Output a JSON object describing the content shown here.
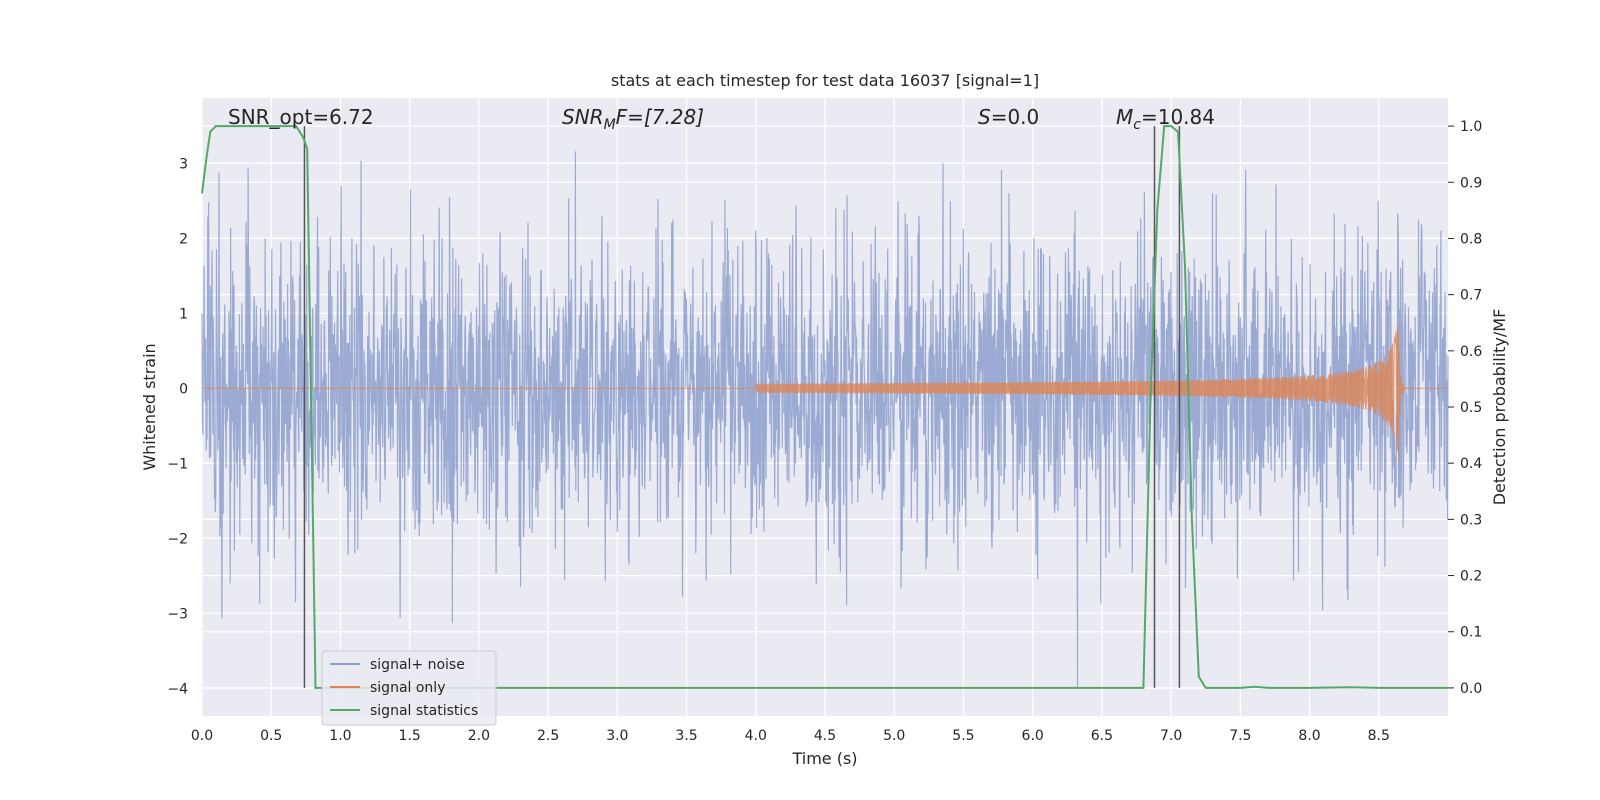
{
  "chart_data": {
    "type": "line",
    "title": "stats at each timestep for test data 16037 [signal=1]",
    "xlabel": "Time (s)",
    "ylabel": "Whitened strain",
    "y2label": "Detection probability/MF",
    "xlim": [
      0.0,
      9.0
    ],
    "ylim": [
      -4.37,
      3.87
    ],
    "y2lim": [
      -0.05,
      1.05
    ],
    "x_ticks": [
      "0.0",
      "0.5",
      "1.0",
      "1.5",
      "2.0",
      "2.5",
      "3.0",
      "3.5",
      "4.0",
      "4.5",
      "5.0",
      "5.5",
      "6.0",
      "6.5",
      "7.0",
      "7.5",
      "8.0",
      "8.5"
    ],
    "y_ticks": [
      "−4",
      "−3",
      "−2",
      "−1",
      "0",
      "1",
      "2",
      "3"
    ],
    "y2_ticks": [
      "0.0",
      "0.1",
      "0.2",
      "0.3",
      "0.4",
      "0.5",
      "0.6",
      "0.7",
      "0.8",
      "0.9",
      "1.0"
    ],
    "grid": true,
    "legend_position": "lower-left",
    "colors": {
      "signal_noise": "#8c9fcd",
      "signal_only": "#dd8452",
      "signal_statistics": "#55a868",
      "markers": "#555555",
      "background": "#eaeaf2"
    },
    "annotations": {
      "snr_opt": "SNR_opt=6.72",
      "snr_mf_italic": "SNR",
      "snr_mf_sub": "M",
      "snr_mf_rest": "F=[7.28]",
      "s_italic": "S",
      "s_rest": "=0.0",
      "mc_italic": "M",
      "mc_sub": "c",
      "mc_rest": "=10.84"
    },
    "series": [
      {
        "name": "signal+ noise",
        "description_only": false,
        "envelope": {
          "typical_amplitude": 1.0,
          "max": 3.5,
          "min": -4.0
        }
      },
      {
        "name": "signal only",
        "chirp": {
          "start": 4.0,
          "peak_time": 8.65,
          "peak_amplitude": 1.2
        }
      },
      {
        "name": "signal statistics",
        "x": [
          0.0,
          0.03,
          0.06,
          0.1,
          0.2,
          0.4,
          0.6,
          0.68,
          0.73,
          0.76,
          0.82,
          6.8,
          6.85,
          6.9,
          6.95,
          7.0,
          7.05,
          7.1,
          7.15,
          7.2,
          7.25,
          7.3,
          7.5,
          7.6,
          7.65,
          7.7,
          8.0,
          8.3,
          8.5,
          9.0
        ],
        "y": [
          0.88,
          0.94,
          0.99,
          1.0,
          1.0,
          1.0,
          1.0,
          1.0,
          0.98,
          0.96,
          0.0,
          0.0,
          0.5,
          0.85,
          1.0,
          1.0,
          0.99,
          0.75,
          0.3,
          0.02,
          0.0,
          0.0,
          0.0,
          0.002,
          0.001,
          0.0,
          0.0,
          0.001,
          0.0,
          0.0
        ]
      }
    ],
    "vertical_markers": [
      0.74,
      6.88,
      7.06
    ]
  }
}
